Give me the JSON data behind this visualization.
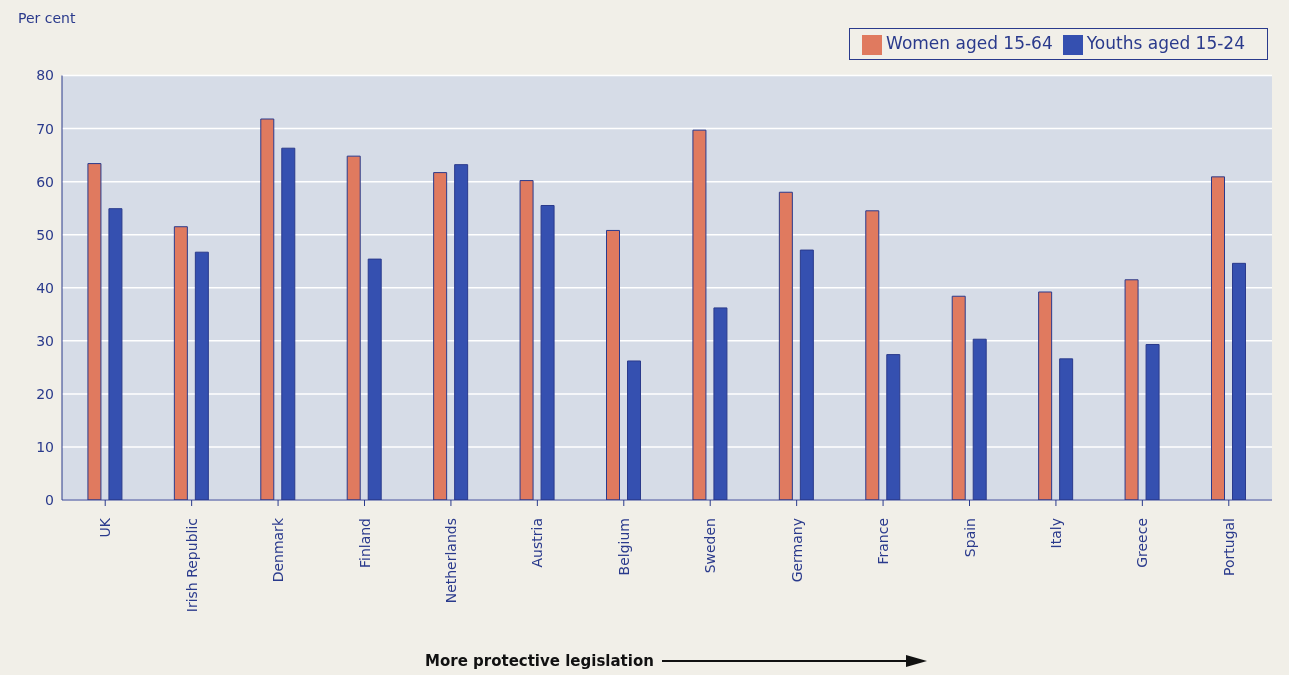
{
  "chart_data": {
    "type": "bar",
    "ylabel": "Per cent",
    "categories": [
      "UK",
      "Irish Republic",
      "Denmark",
      "Finland",
      "Netherlands",
      "Austria",
      "Belgium",
      "Sweden",
      "Germany",
      "France",
      "Spain",
      "Italy",
      "Greece",
      "Portugal"
    ],
    "series": [
      {
        "name": "Women aged 15-64",
        "color": "#e07a5f",
        "values": [
          63.4,
          51.5,
          71.8,
          64.8,
          61.7,
          60.2,
          50.8,
          69.7,
          58,
          54.5,
          38.4,
          39.2,
          41.5,
          60.9
        ]
      },
      {
        "name": "Youths aged 15-24",
        "color": "#3550b0",
        "values": [
          54.9,
          46.7,
          66.3,
          45.4,
          63.2,
          55.5,
          26.2,
          36.2,
          47.1,
          27.4,
          30.3,
          26.6,
          29.3,
          44.6
        ]
      }
    ],
    "ylim": [
      0,
      80
    ],
    "yticks": [
      0,
      10,
      20,
      30,
      40,
      50,
      60,
      70,
      80
    ],
    "grid": "y",
    "legend": "top right",
    "annotations": [
      "More protective legislation"
    ]
  }
}
